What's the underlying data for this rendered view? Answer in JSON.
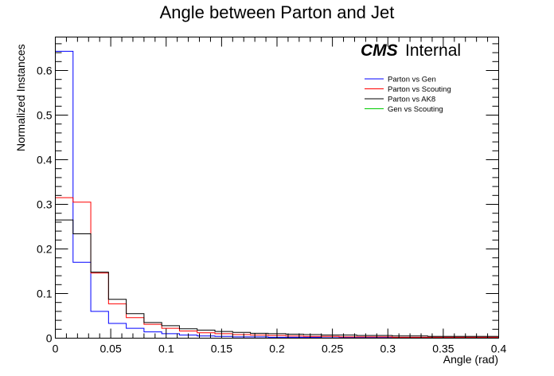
{
  "chart_data": {
    "type": "histogram-step",
    "title": "Angle between Parton and Jet",
    "xlabel": "Angle (rad)",
    "ylabel": "Normalized Instances",
    "xlim": [
      0,
      0.4
    ],
    "ylim": [
      0,
      0.675
    ],
    "x_ticks": [
      "0",
      "0.05",
      "0.1",
      "0.15",
      "0.2",
      "0.25",
      "0.3",
      "0.35",
      "0.4"
    ],
    "x_tick_values": [
      0,
      0.05,
      0.1,
      0.15,
      0.2,
      0.25,
      0.3,
      0.35,
      0.4
    ],
    "y_ticks": [
      "0",
      "0.1",
      "0.2",
      "0.3",
      "0.4",
      "0.5",
      "0.6"
    ],
    "y_tick_values": [
      0,
      0.1,
      0.2,
      0.3,
      0.4,
      0.5,
      0.6
    ],
    "bin_width": 0.016,
    "annotation": {
      "experiment": "CMS",
      "status": "Internal"
    },
    "legend_position": "top-right",
    "series": [
      {
        "name": "Parton vs Gen",
        "color": "#0000ff",
        "values": [
          0.643,
          0.17,
          0.06,
          0.033,
          0.022,
          0.014,
          0.01,
          0.007,
          0.005,
          0.004,
          0.003,
          0.003,
          0.002,
          0.002,
          0.002,
          0.001,
          0.001,
          0.001,
          0.001,
          0.001,
          0.001,
          0.001,
          0.001,
          0.001,
          0.001
        ]
      },
      {
        "name": "Parton vs Scouting",
        "color": "#ff0000",
        "values": [
          0.315,
          0.305,
          0.146,
          0.077,
          0.046,
          0.031,
          0.022,
          0.016,
          0.012,
          0.01,
          0.008,
          0.007,
          0.006,
          0.005,
          0.004,
          0.004,
          0.003,
          0.003,
          0.003,
          0.002,
          0.002,
          0.002,
          0.002,
          0.002,
          0.002
        ]
      },
      {
        "name": "Parton vs AK8",
        "color": "#000000",
        "values": [
          0.265,
          0.234,
          0.148,
          0.087,
          0.055,
          0.035,
          0.028,
          0.021,
          0.018,
          0.015,
          0.013,
          0.011,
          0.01,
          0.009,
          0.008,
          0.007,
          0.007,
          0.006,
          0.006,
          0.005,
          0.005,
          0.004,
          0.004,
          0.004,
          0.004
        ]
      },
      {
        "name": "Gen vs Scouting",
        "color": "#00cc00",
        "values": []
      }
    ]
  }
}
